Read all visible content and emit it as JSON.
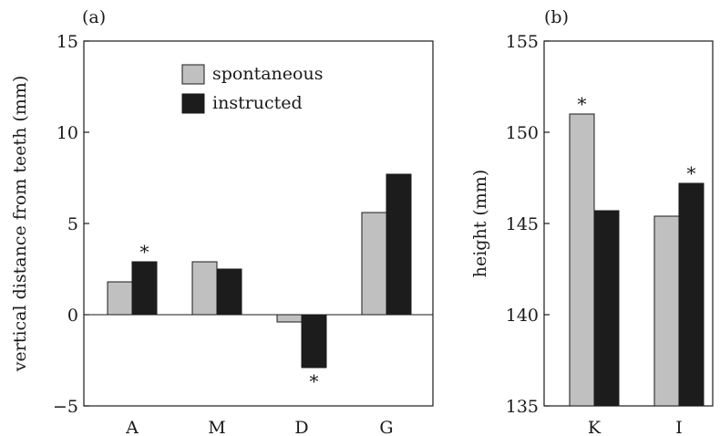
{
  "colors": {
    "spontaneous": "#c0c0c0",
    "instructed": "#1c1c1c",
    "axis": "#1a1a1a"
  },
  "chart_data": [
    {
      "type": "bar",
      "panel_label": "(a)",
      "ylabel": "vertical distance from teeth (mm)",
      "xlabel": "",
      "ylim": [
        -5,
        15
      ],
      "yticks": [
        "−5",
        "0",
        "5",
        "10",
        "15"
      ],
      "ytick_values": [
        -5,
        0,
        5,
        10,
        15
      ],
      "categories": [
        "A",
        "M",
        "D",
        "G"
      ],
      "series": [
        {
          "name": "spontaneous",
          "values": [
            1.8,
            2.9,
            -0.4,
            5.6
          ]
        },
        {
          "name": "instructed",
          "values": [
            2.9,
            2.5,
            -2.9,
            7.7
          ]
        }
      ],
      "significance": [
        {
          "category": "A",
          "series": "instructed",
          "symbol": "*"
        },
        {
          "category": "D",
          "series": "instructed",
          "symbol": "*"
        }
      ],
      "legend": {
        "placement": "top-center",
        "entries": [
          "spontaneous",
          "instructed"
        ]
      },
      "grid": false,
      "zero_line": true
    },
    {
      "type": "bar",
      "panel_label": "(b)",
      "ylabel": "height (mm)",
      "xlabel": "",
      "ylim": [
        135,
        155
      ],
      "yticks": [
        "135",
        "140",
        "145",
        "150",
        "155"
      ],
      "ytick_values": [
        135,
        140,
        145,
        150,
        155
      ],
      "categories": [
        "K",
        "I"
      ],
      "series": [
        {
          "name": "spontaneous",
          "values": [
            151.0,
            145.4
          ]
        },
        {
          "name": "instructed",
          "values": [
            145.7,
            147.2
          ]
        }
      ],
      "significance": [
        {
          "category": "K",
          "series": "spontaneous",
          "symbol": "*"
        },
        {
          "category": "I",
          "series": "instructed",
          "symbol": "*"
        }
      ],
      "grid": false
    }
  ]
}
